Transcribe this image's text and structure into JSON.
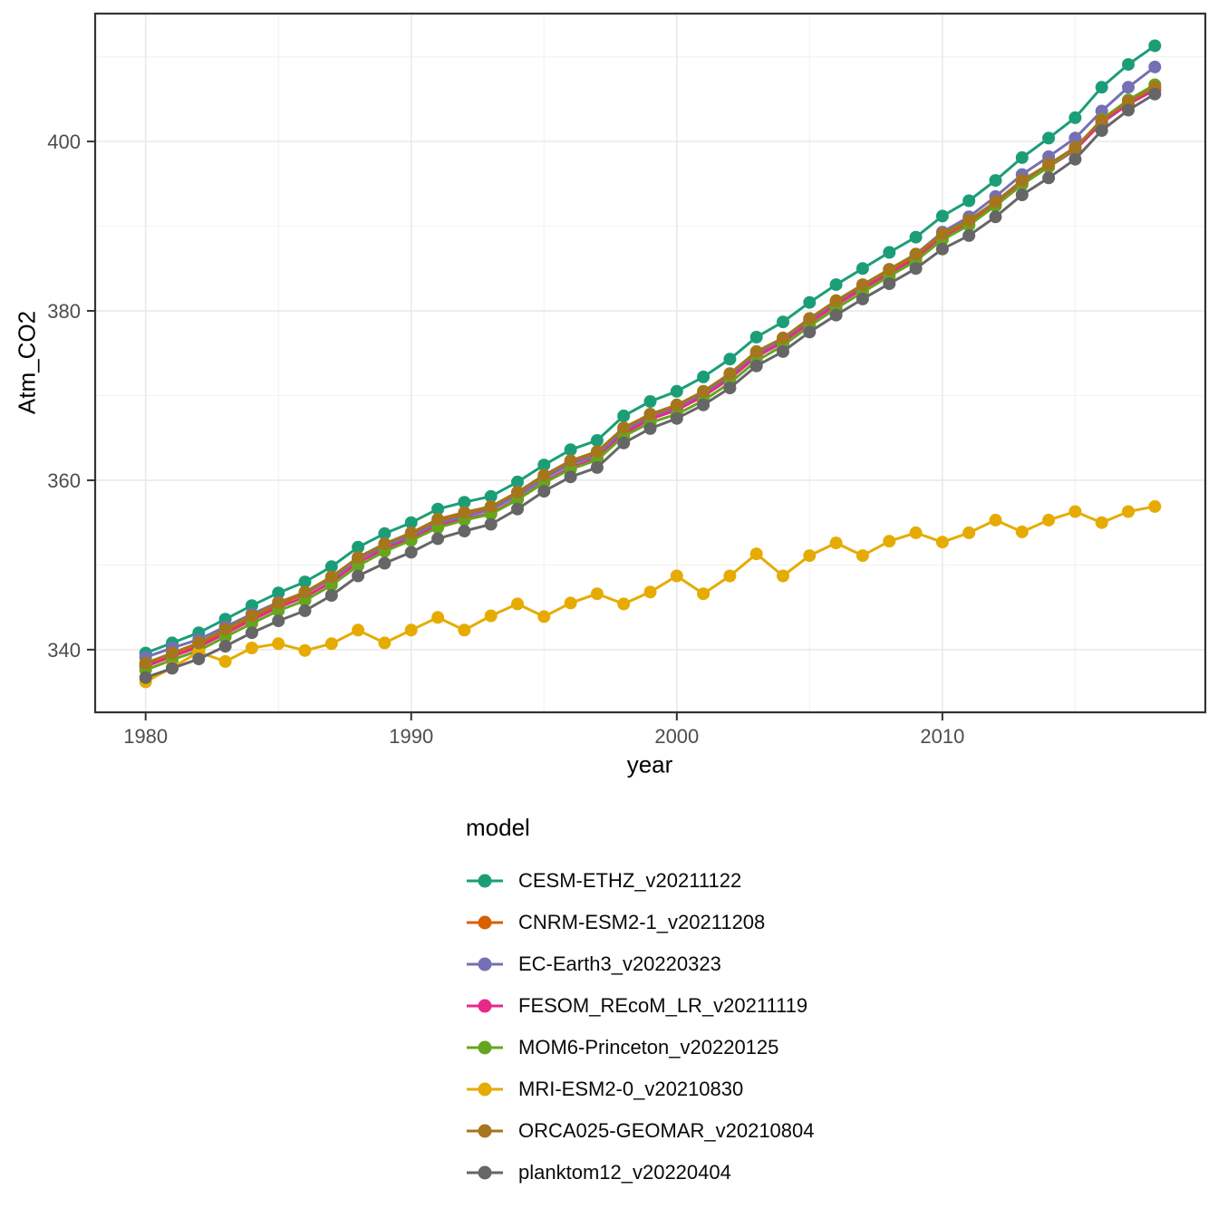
{
  "chart_data": {
    "type": "line",
    "title": "",
    "xlabel": "year",
    "ylabel": "Atm_CO2",
    "legend_title": "model",
    "legend_position": "bottom-left",
    "grid": true,
    "xlim": [
      1978.1,
      2019.9
    ],
    "ylim": [
      332.6,
      415.1
    ],
    "x_ticks": [
      1980,
      1990,
      2000,
      2010
    ],
    "x_minor_ticks": [
      1985,
      1995,
      2005,
      2015
    ],
    "y_ticks": [
      340,
      360,
      380,
      400
    ],
    "y_minor_ticks": [
      350,
      370,
      390,
      410
    ],
    "x": [
      1980,
      1981,
      1982,
      1983,
      1984,
      1985,
      1986,
      1987,
      1988,
      1989,
      1990,
      1991,
      1992,
      1993,
      1994,
      1995,
      1996,
      1997,
      1998,
      1999,
      2000,
      2001,
      2002,
      2003,
      2004,
      2005,
      2006,
      2007,
      2008,
      2009,
      2010,
      2011,
      2012,
      2013,
      2014,
      2015,
      2016,
      2017,
      2018
    ],
    "series": [
      {
        "name": "CESM-ETHZ_v20211122",
        "color": "#1B9E77",
        "values": [
          339.6,
          340.8,
          342.0,
          343.6,
          345.2,
          346.7,
          348.0,
          349.8,
          352.1,
          353.7,
          355.0,
          356.6,
          357.4,
          358.1,
          359.8,
          361.8,
          363.6,
          364.7,
          367.6,
          369.3,
          370.5,
          372.2,
          374.3,
          376.9,
          378.7,
          381.0,
          383.1,
          385.0,
          386.9,
          388.7,
          391.2,
          393.0,
          395.4,
          398.1,
          400.4,
          402.8,
          406.4,
          409.1,
          411.3
        ]
      },
      {
        "name": "CNRM-ESM2-1_v20211208",
        "color": "#D95F02",
        "values": [
          338.2,
          339.4,
          340.6,
          342.2,
          343.8,
          345.3,
          346.6,
          348.4,
          350.7,
          352.3,
          353.6,
          355.2,
          356.0,
          356.7,
          358.4,
          360.4,
          362.1,
          363.2,
          366.0,
          367.6,
          368.7,
          370.3,
          372.4,
          375.0,
          376.6,
          378.9,
          381.0,
          382.9,
          384.7,
          386.5,
          388.9,
          390.5,
          392.7,
          395.2,
          397.1,
          399.1,
          402.3,
          404.5,
          406.2
        ]
      },
      {
        "name": "EC-Earth3_v20220323",
        "color": "#7570B3",
        "values": [
          339.1,
          340.2,
          341.2,
          342.7,
          344.2,
          345.6,
          346.7,
          348.4,
          350.7,
          352.2,
          353.4,
          354.9,
          355.7,
          356.5,
          358.2,
          360.2,
          361.9,
          362.9,
          365.8,
          367.4,
          368.5,
          370.1,
          372.2,
          374.8,
          376.6,
          378.9,
          381.1,
          383.0,
          384.9,
          386.7,
          389.3,
          391.1,
          393.5,
          396.1,
          398.2,
          400.4,
          403.6,
          406.4,
          408.8
        ]
      },
      {
        "name": "FESOM_REcoM_LR_v20211119",
        "color": "#E7298A",
        "values": [
          338.0,
          339.2,
          340.3,
          341.9,
          343.5,
          345.0,
          346.2,
          348.0,
          350.3,
          351.9,
          353.1,
          354.6,
          355.4,
          356.1,
          357.8,
          359.8,
          361.5,
          362.6,
          365.5,
          367.2,
          368.3,
          369.9,
          372.0,
          374.6,
          376.3,
          378.6,
          380.7,
          382.6,
          384.4,
          386.2,
          388.6,
          390.2,
          392.5,
          395.0,
          397.0,
          399.0,
          402.2,
          404.4,
          406.1
        ]
      },
      {
        "name": "MOM6-Princeton_v20220125",
        "color": "#66A61E",
        "values": [
          337.6,
          338.8,
          339.9,
          341.5,
          343.1,
          344.6,
          345.8,
          347.6,
          349.9,
          351.6,
          352.9,
          354.4,
          355.3,
          356.0,
          357.7,
          359.7,
          361.3,
          362.4,
          365.2,
          366.8,
          367.8,
          369.4,
          371.5,
          374.1,
          375.9,
          378.2,
          380.3,
          382.2,
          384.1,
          385.9,
          388.4,
          390.1,
          392.4,
          394.9,
          397.0,
          399.2,
          402.6,
          404.9,
          406.7
        ]
      },
      {
        "name": "MRI-ESM2-0_v20210830",
        "color": "#E6AB02",
        "values": [
          336.2,
          337.9,
          339.7,
          338.6,
          340.2,
          340.7,
          339.9,
          340.7,
          342.3,
          340.8,
          342.3,
          343.8,
          342.3,
          344.0,
          345.4,
          343.9,
          345.5,
          346.6,
          345.4,
          346.8,
          348.7,
          346.6,
          348.7,
          351.3,
          348.7,
          351.1,
          352.6,
          351.1,
          352.8,
          353.8,
          352.7,
          353.8,
          355.3,
          353.9,
          355.3,
          356.3,
          355.0,
          356.3,
          356.9
        ]
      },
      {
        "name": "ORCA025-GEOMAR_v20210804",
        "color": "#A6761D",
        "values": [
          338.4,
          339.6,
          340.8,
          342.4,
          344.0,
          345.5,
          346.8,
          348.6,
          350.9,
          352.5,
          353.8,
          355.4,
          356.2,
          356.9,
          358.6,
          360.6,
          362.3,
          363.4,
          366.2,
          367.8,
          368.9,
          370.5,
          372.6,
          375.2,
          376.8,
          379.1,
          381.2,
          383.1,
          384.9,
          386.7,
          389.1,
          390.7,
          392.9,
          395.4,
          397.3,
          399.3,
          402.5,
          404.7,
          406.4
        ]
      },
      {
        "name": "planktom12_v20220404",
        "color": "#666666",
        "values": [
          336.7,
          337.8,
          338.9,
          340.4,
          342.0,
          343.4,
          344.6,
          346.4,
          348.7,
          350.2,
          351.5,
          353.1,
          354.0,
          354.8,
          356.6,
          358.7,
          360.4,
          361.5,
          364.4,
          366.1,
          367.3,
          368.9,
          370.9,
          373.5,
          375.2,
          377.5,
          379.5,
          381.4,
          383.2,
          385.0,
          387.3,
          388.9,
          391.1,
          393.7,
          395.7,
          397.9,
          401.3,
          403.7,
          405.6
        ]
      }
    ],
    "style": {
      "panel_border_color": "#333333",
      "major_grid_color": "#E9E9E9",
      "minor_grid_color": "#F3F3F3",
      "tick_color": "#333333",
      "tick_label_color": "#4D4D4D",
      "background": "#FFFFFF"
    }
  }
}
